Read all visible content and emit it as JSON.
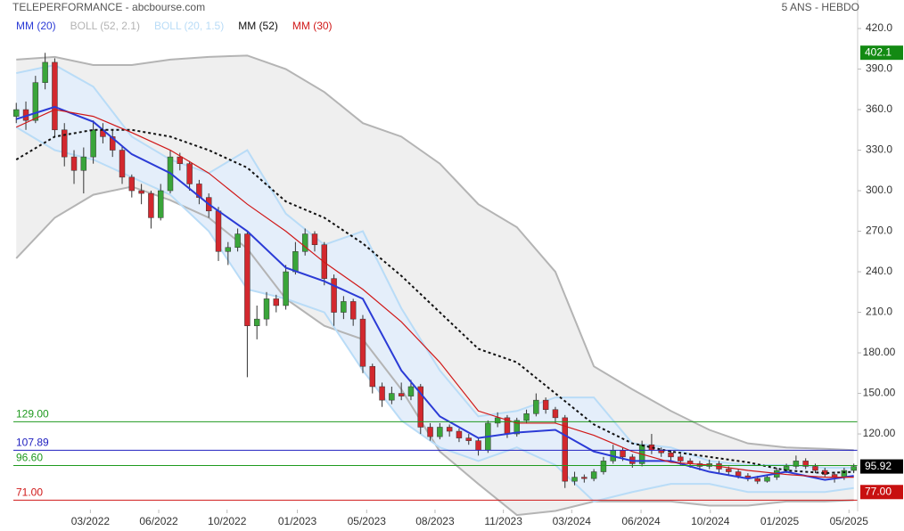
{
  "chart_data": {
    "type": "candlestick",
    "title": "TELEPERFORMANCE - abcbourse.com",
    "subtitle": "5 ANS - HEBDO",
    "xlim": [
      -0.3,
      87.4
    ],
    "ylim": [
      64,
      433.2
    ],
    "xticks": [
      {
        "value": 7.7,
        "label": "03/2022"
      },
      {
        "value": 14.8,
        "label": "06/2022"
      },
      {
        "value": 21.9,
        "label": "10/2022"
      },
      {
        "value": 29.2,
        "label": "01/2023"
      },
      {
        "value": 36.4,
        "label": "05/2023"
      },
      {
        "value": 43.5,
        "label": "08/2023"
      },
      {
        "value": 50.6,
        "label": "11/2023"
      },
      {
        "value": 57.7,
        "label": "03/2024"
      },
      {
        "value": 64.9,
        "label": "06/2024"
      },
      {
        "value": 72.1,
        "label": "10/2024"
      },
      {
        "value": 79.3,
        "label": "01/2025"
      },
      {
        "value": 86.5,
        "label": "05/2025"
      }
    ],
    "yticks": [
      {
        "value": 420,
        "label": "420.0"
      },
      {
        "value": 390,
        "label": "390.0"
      },
      {
        "value": 360,
        "label": "360.0"
      },
      {
        "value": 330,
        "label": "330.0"
      },
      {
        "value": 300,
        "label": "300.0"
      },
      {
        "value": 270,
        "label": "270.0"
      },
      {
        "value": 240,
        "label": "240.0"
      },
      {
        "value": 210,
        "label": "210.0"
      },
      {
        "value": 180,
        "label": "180.00"
      },
      {
        "value": 150,
        "label": "150.00"
      },
      {
        "value": 120,
        "label": "120.00"
      }
    ],
    "up_color": "#3aa53a",
    "down_color": "#d3282e",
    "candles": [
      [
        355,
        365,
        350,
        360
      ],
      [
        360,
        366,
        345,
        352
      ],
      [
        352,
        385,
        350,
        380
      ],
      [
        380,
        402,
        375,
        395
      ],
      [
        395,
        398,
        340,
        345
      ],
      [
        345,
        350,
        318,
        325
      ],
      [
        325,
        330,
        305,
        315
      ],
      [
        315,
        332,
        298,
        325
      ],
      [
        325,
        352,
        320,
        345
      ],
      [
        345,
        350,
        335,
        340
      ],
      [
        340,
        345,
        325,
        330
      ],
      [
        330,
        333,
        305,
        310
      ],
      [
        310,
        312,
        295,
        300
      ],
      [
        300,
        305,
        290,
        298
      ],
      [
        298,
        300,
        272,
        280
      ],
      [
        280,
        305,
        278,
        300
      ],
      [
        300,
        330,
        298,
        325
      ],
      [
        325,
        328,
        315,
        320
      ],
      [
        320,
        322,
        300,
        305
      ],
      [
        305,
        308,
        290,
        295
      ],
      [
        295,
        298,
        280,
        285
      ],
      [
        285,
        288,
        248,
        255
      ],
      [
        255,
        262,
        245,
        258
      ],
      [
        258,
        272,
        255,
        268
      ],
      [
        268,
        270,
        162,
        200
      ],
      [
        200,
        215,
        190,
        205
      ],
      [
        205,
        225,
        200,
        220
      ],
      [
        220,
        223,
        210,
        215
      ],
      [
        215,
        245,
        212,
        240
      ],
      [
        240,
        262,
        238,
        255
      ],
      [
        255,
        272,
        252,
        268
      ],
      [
        268,
        270,
        255,
        260
      ],
      [
        260,
        262,
        230,
        235
      ],
      [
        235,
        238,
        200,
        210
      ],
      [
        210,
        222,
        205,
        218
      ],
      [
        218,
        220,
        200,
        205
      ],
      [
        205,
        208,
        165,
        170
      ],
      [
        170,
        172,
        150,
        155
      ],
      [
        155,
        158,
        140,
        145
      ],
      [
        145,
        155,
        142,
        150
      ],
      [
        150,
        158,
        145,
        148
      ],
      [
        148,
        160,
        145,
        155
      ],
      [
        155,
        157,
        120,
        125
      ],
      [
        125,
        128,
        115,
        118
      ],
      [
        118,
        128,
        116,
        125
      ],
      [
        125,
        127,
        118,
        122
      ],
      [
        122,
        124,
        114,
        117
      ],
      [
        117,
        120,
        112,
        115
      ],
      [
        115,
        117,
        104,
        108
      ],
      [
        108,
        130,
        106,
        128
      ],
      [
        128,
        136,
        125,
        132
      ],
      [
        132,
        134,
        117,
        120
      ],
      [
        120,
        132,
        118,
        130
      ],
      [
        130,
        138,
        128,
        135
      ],
      [
        135,
        150,
        133,
        145
      ],
      [
        145,
        147,
        135,
        138
      ],
      [
        138,
        140,
        128,
        132
      ],
      [
        132,
        134,
        80,
        85
      ],
      [
        85,
        92,
        82,
        88
      ],
      [
        88,
        90,
        84,
        87
      ],
      [
        87,
        94,
        85,
        92
      ],
      [
        92,
        103,
        90,
        100
      ],
      [
        100,
        112,
        98,
        108
      ],
      [
        108,
        110,
        100,
        103
      ],
      [
        103,
        105,
        95,
        98
      ],
      [
        98,
        115,
        96,
        112
      ],
      [
        112,
        120,
        105,
        108
      ],
      [
        108,
        110,
        103,
        106
      ],
      [
        106,
        108,
        100,
        103
      ],
      [
        103,
        105,
        97,
        100
      ],
      [
        100,
        102,
        95,
        98
      ],
      [
        98,
        100,
        93,
        96
      ],
      [
        96,
        101,
        94,
        98
      ],
      [
        98,
        100,
        91,
        94
      ],
      [
        94,
        96,
        89,
        92
      ],
      [
        92,
        94,
        87,
        89
      ],
      [
        89,
        91,
        85,
        87
      ],
      [
        87,
        89,
        83,
        85
      ],
      [
        85,
        90,
        84,
        88
      ],
      [
        88,
        95,
        86,
        93
      ],
      [
        93,
        98,
        91,
        96
      ],
      [
        96,
        104,
        94,
        100
      ],
      [
        100,
        102,
        94,
        96
      ],
      [
        96,
        98,
        91,
        93
      ],
      [
        93,
        95,
        88,
        90
      ],
      [
        90,
        92,
        84,
        88
      ],
      [
        88,
        95,
        86,
        93
      ],
      [
        93,
        98,
        91,
        95.92
      ]
    ],
    "line_x": [
      0,
      4,
      8,
      12,
      16,
      20,
      24,
      28,
      32,
      36,
      40,
      44,
      48,
      52,
      56,
      60,
      64,
      68,
      72,
      76,
      80,
      84,
      87
    ],
    "series": [
      {
        "name": "MM (20)",
        "color": "#2b3bd6",
        "values": [
          353,
          362,
          351,
          327,
          313,
          290,
          270,
          243,
          233,
          220,
          167,
          133,
          117,
          121,
          123,
          107,
          100,
          100,
          92,
          87,
          92,
          86,
          89
        ]
      },
      {
        "name": "BOLL (52, 2.1)",
        "color": "#b4b4b4",
        "fill": "#efefef",
        "upper": [
          397,
          399,
          393,
          393,
          397,
          399,
          400,
          390,
          373,
          350,
          340,
          320,
          290,
          273,
          240,
          170,
          153,
          137,
          123,
          113,
          110,
          109,
          108
        ],
        "lower": [
          250,
          280,
          297,
          303,
          293,
          280,
          257,
          220,
          200,
          190,
          153,
          107,
          83,
          60,
          63,
          70,
          70,
          70,
          67,
          67,
          70,
          70,
          71
        ]
      },
      {
        "name": "BOLL (20, 1.5)",
        "color": "#b9dcf7",
        "fill": "#e4eefa",
        "upper": [
          387,
          393,
          377,
          340,
          323,
          313,
          330,
          283,
          260,
          270,
          213,
          167,
          133,
          137,
          147,
          147,
          113,
          110,
          100,
          97,
          97,
          95,
          95
        ],
        "lower": [
          347,
          330,
          323,
          310,
          297,
          270,
          227,
          220,
          210,
          167,
          130,
          110,
          100,
          110,
          97,
          70,
          77,
          83,
          83,
          77,
          77,
          77,
          80
        ]
      },
      {
        "name": "MM (52)",
        "color": "#111111",
        "dash": true,
        "values": [
          323,
          340,
          345,
          345,
          340,
          330,
          317,
          292,
          280,
          261,
          237,
          210,
          183,
          173,
          150,
          127,
          113,
          107,
          103,
          99,
          93,
          91,
          92
        ]
      },
      {
        "name": "MM (30)",
        "color": "#d01818",
        "values": [
          347,
          360,
          355,
          343,
          330,
          313,
          290,
          270,
          247,
          227,
          203,
          173,
          137,
          128,
          128,
          119,
          107,
          99,
          97,
          93,
          90,
          88,
          88
        ]
      }
    ],
    "levels": [
      {
        "value": 129,
        "label": "129.00",
        "color": "#1f9a1f"
      },
      {
        "value": 107.89,
        "label": "107.89",
        "color": "#2020c0"
      },
      {
        "value": 96.6,
        "label": "96.60",
        "color": "#1f9a1f"
      },
      {
        "value": 71,
        "label": "71.00",
        "color": "#d01818"
      }
    ],
    "price_tags": [
      {
        "value": 402.1,
        "label": "402.1",
        "color": "#138a13"
      },
      {
        "value": 95.92,
        "label": "95.92",
        "color": "#000000"
      },
      {
        "value": 77,
        "label": "77.00",
        "color": "#c81010"
      }
    ]
  }
}
